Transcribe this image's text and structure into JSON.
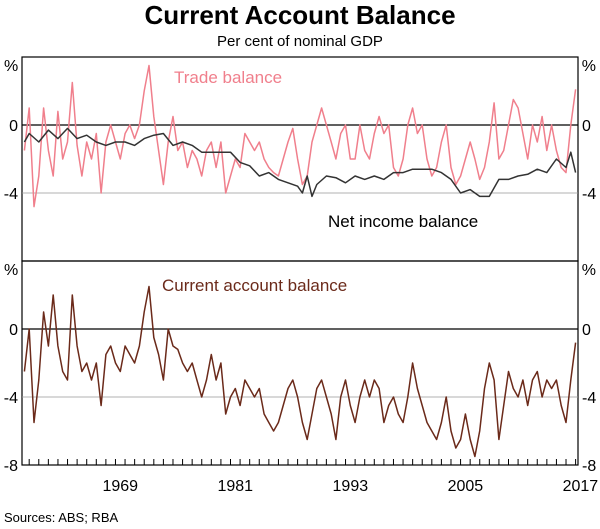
{
  "chart_data": {
    "type": "line",
    "title": "Current Account Balance",
    "subtitle": "Per cent of nominal GDP",
    "source": "Sources: ABS; RBA",
    "unit_label": "%",
    "x_ticks": [
      "1969",
      "1981",
      "1993",
      "2005",
      "2017"
    ],
    "x_range": [
      1959.25,
      2017.25
    ],
    "colors": {
      "trade": "#f07f8c",
      "net_income": "#333333",
      "current_account": "#6b2a1a",
      "grid": "#999999"
    },
    "panels": [
      {
        "id": "top",
        "ylim": [
          -8,
          4
        ],
        "y_ticks": [
          "-4",
          "0"
        ],
        "y_tick_values": [
          -4,
          0
        ],
        "series": [
          {
            "name": "Trade balance",
            "color": "#f07f8c",
            "x": [
              1959.5,
              1960.0,
              1960.5,
              1961.0,
              1961.5,
              1962.0,
              1962.5,
              1963.0,
              1963.5,
              1964.0,
              1964.5,
              1965.0,
              1965.5,
              1966.0,
              1966.5,
              1967.0,
              1967.5,
              1968.0,
              1968.5,
              1969.0,
              1969.5,
              1970.0,
              1970.5,
              1971.0,
              1971.5,
              1972.0,
              1972.5,
              1973.0,
              1973.5,
              1974.0,
              1974.5,
              1975.0,
              1975.5,
              1976.0,
              1976.5,
              1977.0,
              1977.5,
              1978.0,
              1978.5,
              1979.0,
              1979.5,
              1980.0,
              1980.5,
              1981.0,
              1981.5,
              1982.0,
              1982.5,
              1983.0,
              1983.5,
              1984.0,
              1984.5,
              1985.0,
              1985.5,
              1986.0,
              1986.5,
              1987.0,
              1987.5,
              1988.0,
              1988.5,
              1989.0,
              1989.5,
              1990.0,
              1990.5,
              1991.0,
              1991.5,
              1992.0,
              1992.5,
              1993.0,
              1993.5,
              1994.0,
              1994.5,
              1995.0,
              1995.5,
              1996.0,
              1996.5,
              1997.0,
              1997.5,
              1998.0,
              1998.5,
              1999.0,
              1999.5,
              2000.0,
              2000.5,
              2001.0,
              2001.5,
              2002.0,
              2002.5,
              2003.0,
              2003.5,
              2004.0,
              2004.5,
              2005.0,
              2005.5,
              2006.0,
              2006.5,
              2007.0,
              2007.5,
              2008.0,
              2008.5,
              2009.0,
              2009.5,
              2010.0,
              2010.5,
              2011.0,
              2011.5,
              2012.0,
              2012.5,
              2013.0,
              2013.5,
              2014.0,
              2014.5,
              2015.0,
              2015.5,
              2016.0,
              2016.5,
              2017.0
            ],
            "values": [
              -1.5,
              1.0,
              -4.8,
              -3.0,
              1.0,
              -1.5,
              -3.0,
              0.8,
              -2.0,
              -1.0,
              2.5,
              -1.2,
              -3.0,
              -1.0,
              -2.0,
              -0.5,
              -4.0,
              -1.0,
              0.0,
              -1.0,
              -2.0,
              -0.5,
              0.0,
              -0.8,
              0.0,
              2.0,
              3.5,
              0.5,
              -1.5,
              -3.5,
              -1.0,
              0.5,
              -1.5,
              -1.0,
              -2.5,
              -1.5,
              -2.0,
              -3.0,
              -1.5,
              -1.0,
              -2.5,
              -1.0,
              -4.0,
              -3.0,
              -2.0,
              -2.5,
              -0.5,
              -1.0,
              -1.5,
              -1.0,
              -2.0,
              -2.5,
              -2.8,
              -3.0,
              -2.0,
              -1.0,
              -0.2,
              -2.0,
              -3.5,
              -3.0,
              -1.0,
              0.0,
              1.0,
              0.0,
              -1.0,
              -2.0,
              -0.5,
              0.0,
              -2.0,
              -2.0,
              0.0,
              -1.5,
              -2.0,
              -0.5,
              0.5,
              -0.5,
              0.0,
              -2.5,
              -3.0,
              -2.0,
              0.0,
              1.0,
              -0.5,
              0.0,
              -2.0,
              -3.0,
              -2.5,
              -1.0,
              0.0,
              -2.5,
              -3.5,
              -3.0,
              -2.0,
              -1.0,
              -2.0,
              -3.2,
              -2.5,
              -1.0,
              1.3,
              -2.0,
              -1.5,
              0.0,
              1.5,
              1.0,
              -0.5,
              -2.0,
              0.0,
              -1.0,
              0.5,
              -1.5,
              0.0,
              -1.5,
              -2.5,
              -2.8,
              0.0,
              2.1
            ]
          },
          {
            "name": "Net income balance",
            "color": "#333333",
            "x": [
              1959.5,
              1960.0,
              1961.0,
              1962.0,
              1963.0,
              1964.0,
              1965.0,
              1966.0,
              1967.0,
              1968.0,
              1969.0,
              1970.0,
              1971.0,
              1972.0,
              1973.0,
              1974.0,
              1975.0,
              1976.0,
              1977.0,
              1978.0,
              1979.0,
              1980.0,
              1981.0,
              1982.0,
              1983.0,
              1984.0,
              1985.0,
              1986.0,
              1987.0,
              1988.0,
              1988.5,
              1989.0,
              1989.5,
              1990.0,
              1991.0,
              1992.0,
              1993.0,
              1994.0,
              1995.0,
              1996.0,
              1997.0,
              1998.0,
              1999.0,
              2000.0,
              2001.0,
              2002.0,
              2003.0,
              2004.0,
              2005.0,
              2006.0,
              2007.0,
              2008.0,
              2009.0,
              2010.0,
              2011.0,
              2012.0,
              2013.0,
              2014.0,
              2015.0,
              2016.0,
              2016.5,
              2017.0
            ],
            "values": [
              -1.0,
              -0.5,
              -1.0,
              -0.3,
              -0.8,
              -0.2,
              -0.8,
              -0.6,
              -1.0,
              -1.2,
              -1.0,
              -1.0,
              -1.2,
              -0.8,
              -0.6,
              -0.5,
              -1.2,
              -1.0,
              -1.2,
              -1.6,
              -1.6,
              -1.6,
              -1.6,
              -2.2,
              -2.4,
              -3.0,
              -2.8,
              -3.2,
              -3.4,
              -3.6,
              -4.0,
              -3.0,
              -4.2,
              -3.5,
              -3.0,
              -3.1,
              -3.4,
              -3.0,
              -3.2,
              -3.0,
              -3.2,
              -2.8,
              -2.8,
              -2.6,
              -2.6,
              -2.6,
              -2.8,
              -3.2,
              -4.0,
              -3.8,
              -4.2,
              -4.2,
              -3.2,
              -3.2,
              -3.0,
              -2.9,
              -2.6,
              -2.8,
              -2.0,
              -2.5,
              -1.6,
              -2.8
            ]
          }
        ],
        "annotations": [
          {
            "text": "Trade balance",
            "series": "Trade balance"
          },
          {
            "text": "Net income balance",
            "series": "Net income balance"
          }
        ]
      },
      {
        "id": "bottom",
        "ylim": [
          -8,
          4
        ],
        "y_ticks": [
          "-8",
          "-4",
          "0"
        ],
        "y_tick_values": [
          -8,
          -4,
          0
        ],
        "series": [
          {
            "name": "Current account balance",
            "color": "#6b2a1a",
            "x": [
              1959.5,
              1960.0,
              1960.5,
              1961.0,
              1961.5,
              1962.0,
              1962.5,
              1963.0,
              1963.5,
              1964.0,
              1964.5,
              1965.0,
              1965.5,
              1966.0,
              1966.5,
              1967.0,
              1967.5,
              1968.0,
              1968.5,
              1969.0,
              1969.5,
              1970.0,
              1970.5,
              1971.0,
              1971.5,
              1972.0,
              1972.5,
              1973.0,
              1973.5,
              1974.0,
              1974.5,
              1975.0,
              1975.5,
              1976.0,
              1976.5,
              1977.0,
              1977.5,
              1978.0,
              1978.5,
              1979.0,
              1979.5,
              1980.0,
              1980.5,
              1981.0,
              1981.5,
              1982.0,
              1982.5,
              1983.0,
              1983.5,
              1984.0,
              1984.5,
              1985.0,
              1985.5,
              1986.0,
              1986.5,
              1987.0,
              1987.5,
              1988.0,
              1988.5,
              1989.0,
              1989.5,
              1990.0,
              1990.5,
              1991.0,
              1991.5,
              1992.0,
              1992.5,
              1993.0,
              1993.5,
              1994.0,
              1994.5,
              1995.0,
              1995.5,
              1996.0,
              1996.5,
              1997.0,
              1997.5,
              1998.0,
              1998.5,
              1999.0,
              1999.5,
              2000.0,
              2000.5,
              2001.0,
              2001.5,
              2002.0,
              2002.5,
              2003.0,
              2003.5,
              2004.0,
              2004.5,
              2005.0,
              2005.5,
              2006.0,
              2006.5,
              2007.0,
              2007.5,
              2008.0,
              2008.5,
              2009.0,
              2009.5,
              2010.0,
              2010.5,
              2011.0,
              2011.5,
              2012.0,
              2012.5,
              2013.0,
              2013.5,
              2014.0,
              2014.5,
              2015.0,
              2015.5,
              2016.0,
              2016.5,
              2017.0
            ],
            "values": [
              -2.5,
              0.0,
              -5.5,
              -3.0,
              1.0,
              -1.0,
              2.0,
              -1.0,
              -2.5,
              -3.0,
              2.0,
              -1.0,
              -2.5,
              -2.0,
              -3.0,
              -2.0,
              -4.5,
              -1.5,
              -1.0,
              -2.0,
              -2.5,
              -1.0,
              -1.5,
              -2.0,
              -1.0,
              1.0,
              2.5,
              -0.5,
              -1.5,
              -3.0,
              0.0,
              -1.0,
              -1.2,
              -2.0,
              -2.5,
              -2.0,
              -3.0,
              -4.0,
              -3.0,
              -1.5,
              -3.0,
              -2.0,
              -5.0,
              -4.0,
              -3.5,
              -4.5,
              -3.0,
              -3.5,
              -4.0,
              -3.5,
              -5.0,
              -5.5,
              -6.0,
              -5.5,
              -4.5,
              -3.5,
              -3.0,
              -4.0,
              -5.5,
              -6.5,
              -5.0,
              -3.5,
              -3.0,
              -4.0,
              -5.0,
              -6.5,
              -4.0,
              -3.0,
              -4.5,
              -5.5,
              -4.0,
              -3.0,
              -4.0,
              -3.0,
              -3.5,
              -5.5,
              -4.5,
              -4.0,
              -5.0,
              -5.5,
              -4.0,
              -2.0,
              -3.5,
              -4.5,
              -5.5,
              -6.0,
              -6.5,
              -5.5,
              -4.0,
              -6.0,
              -7.0,
              -6.5,
              -5.0,
              -6.5,
              -7.5,
              -6.0,
              -3.5,
              -2.0,
              -3.0,
              -6.5,
              -4.5,
              -2.5,
              -3.5,
              -4.0,
              -3.0,
              -4.5,
              -3.0,
              -2.5,
              -4.0,
              -3.0,
              -3.5,
              -3.0,
              -4.5,
              -5.5,
              -3.0,
              -0.8
            ]
          }
        ],
        "annotations": [
          {
            "text": "Current account balance",
            "series": "Current account balance"
          }
        ]
      }
    ]
  }
}
